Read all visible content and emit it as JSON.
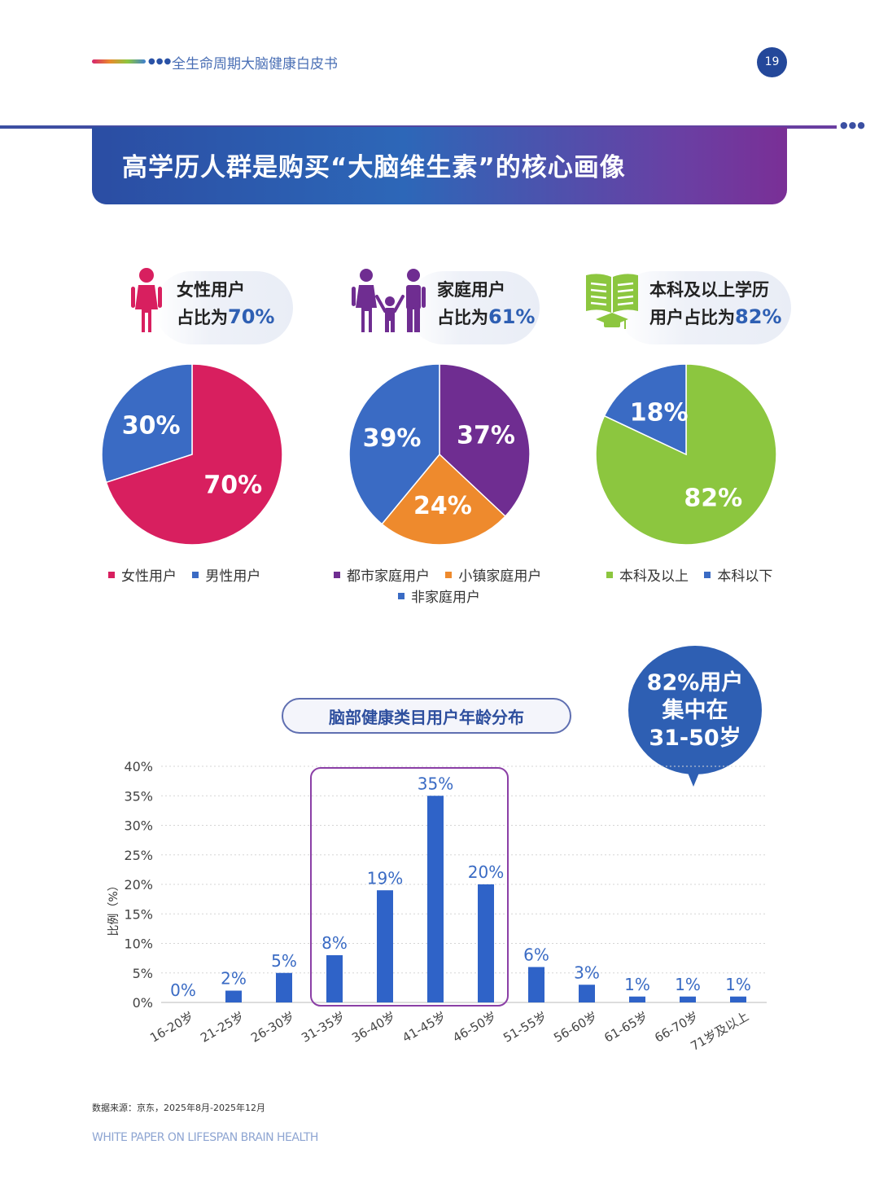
{
  "header": {
    "title": "全生命周期大脑健康白皮书",
    "page_number": "19"
  },
  "banner": {
    "title": "高学历人群是购买“大脑维生素”的核心画像"
  },
  "stats": [
    {
      "line1": "女性用户",
      "line2_prefix": "占比为",
      "pct": "70%",
      "icon": "female-icon",
      "accent": "#2e5fb3"
    },
    {
      "line1": "家庭用户",
      "line2_prefix": "占比为",
      "pct": "61%",
      "icon": "family-icon",
      "accent": "#2e5fb3"
    },
    {
      "line1": "本科及以上学历",
      "line2_prefix": "用户占比为",
      "pct": "82%",
      "icon": "book-graduation-icon",
      "accent": "#2e5fb3"
    }
  ],
  "colors": {
    "female": "#d81f5f",
    "blue": "#3a6bc4",
    "purple": "#6f2d91",
    "orange": "#ee8a2d",
    "green": "#8cc63f",
    "bar": "#2f63c8",
    "highlight_box": "#8b3fa6"
  },
  "pies": [
    {
      "slices": [
        {
          "label": "女性用户",
          "value": 70,
          "text": "70%",
          "color": "#d81f5f"
        },
        {
          "label": "男性用户",
          "value": 30,
          "text": "30%",
          "color": "#3a6bc4"
        }
      ]
    },
    {
      "slices": [
        {
          "label": "都市家庭用户",
          "value": 37,
          "text": "37%",
          "color": "#6f2d91"
        },
        {
          "label": "小镇家庭用户",
          "value": 24,
          "text": "24%",
          "color": "#ee8a2d"
        },
        {
          "label": "非家庭用户",
          "value": 39,
          "text": "39%",
          "color": "#3a6bc4"
        }
      ]
    },
    {
      "slices": [
        {
          "label": "本科及以上",
          "value": 82,
          "text": "82%",
          "color": "#8cc63f"
        },
        {
          "label": "本科以下",
          "value": 18,
          "text": "18%",
          "color": "#3a6bc4"
        }
      ]
    }
  ],
  "callout": {
    "line1": "82%用户",
    "line2": "集中在",
    "line3": "31-50岁"
  },
  "chart_data": {
    "type": "bar",
    "title": "脑部健康类目用户年龄分布",
    "ylabel": "比例（%）",
    "xlabel": "",
    "ylim": [
      0,
      40
    ],
    "yticks": [
      "0%",
      "5%",
      "10%",
      "15%",
      "20%",
      "25%",
      "30%",
      "35%",
      "40%"
    ],
    "grid": true,
    "categories": [
      "16-20岁",
      "21-25岁",
      "26-30岁",
      "31-35岁",
      "36-40岁",
      "41-45岁",
      "46-50岁",
      "51-55岁",
      "56-60岁",
      "61-65岁",
      "66-70岁",
      "71岁及以上"
    ],
    "values": [
      0,
      2,
      5,
      8,
      19,
      35,
      20,
      6,
      3,
      1,
      1,
      1
    ],
    "data_labels": [
      "0%",
      "2%",
      "5%",
      "8%",
      "19%",
      "35%",
      "20%",
      "6%",
      "3%",
      "1%",
      "1%",
      "1%"
    ],
    "highlight_categories": [
      "31-35岁",
      "36-40岁",
      "41-45岁",
      "46-50岁"
    ]
  },
  "footer": {
    "source": "数据来源：京东，2025年8月-2025年12月",
    "english_title": "WHITE PAPER ON LIFESPAN BRAIN HEALTH"
  }
}
